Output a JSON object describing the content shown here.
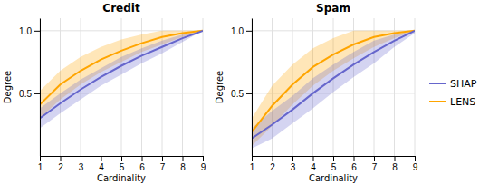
{
  "chart_data": [
    {
      "type": "line",
      "title": "Credit",
      "x_label": "Cardinality",
      "y_label": "Degree",
      "x": [
        1,
        2,
        3,
        4,
        5,
        6,
        7,
        8,
        9
      ],
      "series": [
        {
          "name": "SHAP",
          "color": "#6666cc",
          "values": [
            0.3,
            0.42,
            0.53,
            0.63,
            0.72,
            0.8,
            0.87,
            0.94,
            1.0
          ],
          "lo": [
            0.22,
            0.34,
            0.45,
            0.56,
            0.65,
            0.74,
            0.82,
            0.91,
            1.0
          ],
          "hi": [
            0.38,
            0.5,
            0.61,
            0.7,
            0.79,
            0.86,
            0.92,
            0.97,
            1.0
          ]
        },
        {
          "name": "LENS",
          "color": "#FFA500",
          "values": [
            0.41,
            0.57,
            0.68,
            0.77,
            0.84,
            0.9,
            0.95,
            0.98,
            1.0
          ],
          "lo": [
            0.3,
            0.45,
            0.57,
            0.67,
            0.75,
            0.83,
            0.89,
            0.95,
            1.0
          ],
          "hi": [
            0.52,
            0.68,
            0.79,
            0.87,
            0.93,
            0.97,
            1.0,
            1.0,
            1.0
          ]
        }
      ],
      "xlim": [
        1,
        9
      ],
      "xticks": [
        1,
        2,
        3,
        4,
        5,
        6,
        7,
        8,
        9
      ],
      "ylim": [
        0.0,
        1.1
      ],
      "yticks": [
        0.5,
        {
          "value": 1.0,
          "label": "1.0"
        }
      ],
      "grid": true,
      "legend": "right"
    },
    {
      "type": "line",
      "title": "Spam",
      "x_label": "Cardinality",
      "y_label": "Degree",
      "x": [
        1,
        2,
        3,
        4,
        5,
        6,
        7,
        8,
        9
      ],
      "series": [
        {
          "name": "SHAP",
          "color": "#6666cc",
          "values": [
            0.14,
            0.25,
            0.37,
            0.5,
            0.62,
            0.73,
            0.83,
            0.92,
            1.0
          ],
          "lo": [
            0.06,
            0.14,
            0.26,
            0.38,
            0.51,
            0.63,
            0.74,
            0.87,
            0.98
          ],
          "hi": [
            0.22,
            0.36,
            0.48,
            0.62,
            0.73,
            0.83,
            0.92,
            0.97,
            1.0
          ]
        },
        {
          "name": "LENS",
          "color": "#FFA500",
          "values": [
            0.19,
            0.4,
            0.57,
            0.71,
            0.81,
            0.89,
            0.95,
            0.98,
            1.0
          ],
          "lo": [
            0.08,
            0.24,
            0.41,
            0.56,
            0.68,
            0.78,
            0.87,
            0.94,
            1.0
          ],
          "hi": [
            0.3,
            0.56,
            0.73,
            0.86,
            0.94,
            1.0,
            1.0,
            1.0,
            1.0
          ]
        }
      ],
      "xlim": [
        1,
        9
      ],
      "xticks": [
        1,
        2,
        3,
        4,
        5,
        6,
        7,
        8,
        9
      ],
      "ylim": [
        0.0,
        1.1
      ],
      "yticks": [
        0.5,
        {
          "value": 1.0,
          "label": "1.0"
        }
      ],
      "grid": true
    }
  ]
}
